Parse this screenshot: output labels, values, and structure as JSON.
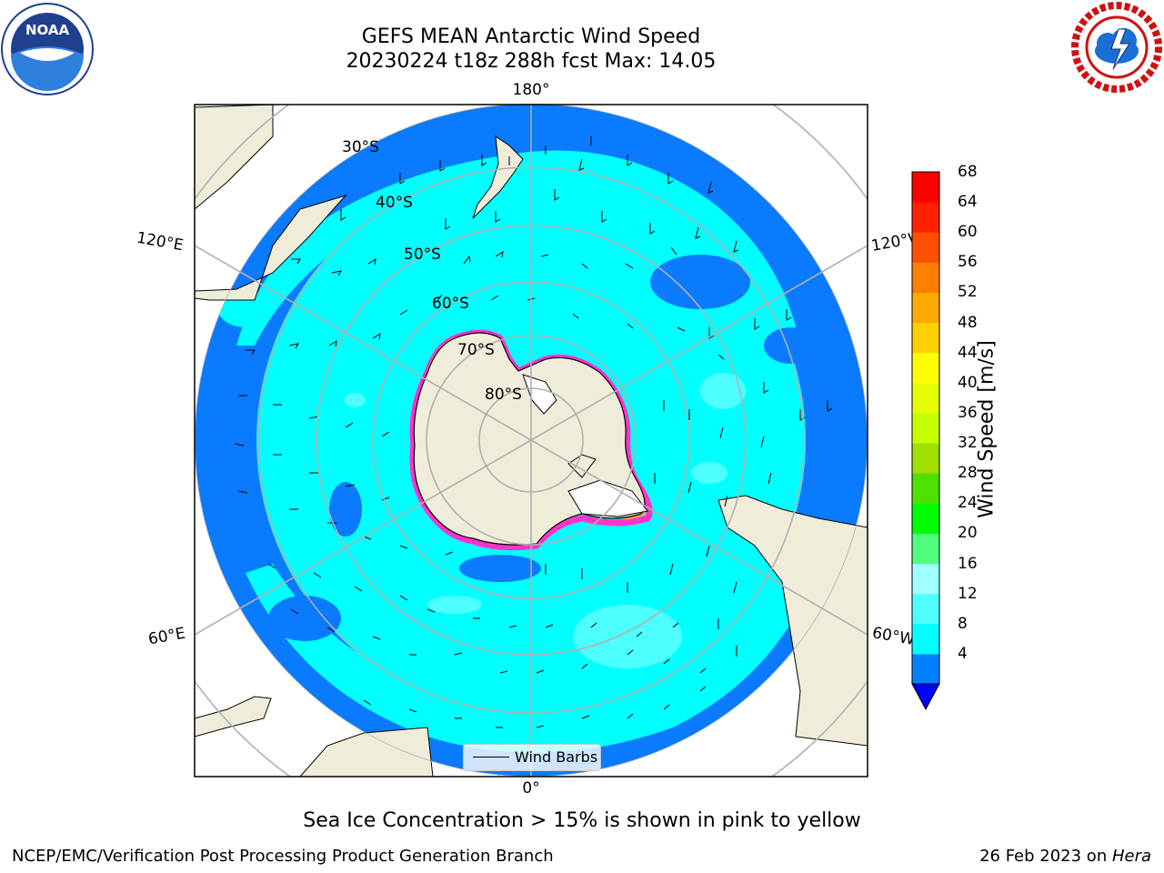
{
  "header": {
    "title_line1": "GEFS MEAN Antarctic Wind Speed",
    "title_line2": "20230224 t18z 288h fcst   Max: 14.05"
  },
  "logos": {
    "left": "noara-logo",
    "right": "nws-logo"
  },
  "map": {
    "projection": "south-polar-stereographic",
    "longitude_labels": {
      "top": "180°",
      "bottom": "0°",
      "upper_left": "120°E",
      "upper_right": "120°W",
      "lower_left": "60°E",
      "lower_right": "60°W"
    },
    "latitude_labels": [
      "30°S",
      "40°S",
      "50°S",
      "60°S",
      "70°S",
      "80°S"
    ],
    "colors": {
      "land": "#efedd9",
      "ice_shelf": "#ffffff",
      "speed_4_8": "#0a7aff",
      "speed_8_12": "#00ffff",
      "speed_12_16": "#4dffff",
      "speed_16_20": "#99ffff",
      "gridline": "#b0b0b0",
      "sea_ice": "#ff33cc"
    }
  },
  "legend": {
    "label": "Wind Barbs"
  },
  "colorbar": {
    "label": "Wind Speed [m/s]",
    "ticks": [
      "68",
      "64",
      "60",
      "56",
      "52",
      "48",
      "44",
      "40",
      "36",
      "32",
      "28",
      "24",
      "20",
      "16",
      "12",
      "8",
      "4"
    ],
    "colors": [
      "#0000ff",
      "#0080ff",
      "#00ffff",
      "#50ffff",
      "#a0ffff",
      "#50ff80",
      "#00ff00",
      "#50e000",
      "#a0e000",
      "#c8ff00",
      "#e6ff00",
      "#ffff00",
      "#ffd000",
      "#ffaa00",
      "#ff8000",
      "#ff5000",
      "#ff2000",
      "#ff0000"
    ]
  },
  "note": "Sea Ice Concentration > 15% is shown in pink to yellow",
  "footer": {
    "left": "NCEP/EMC/Verification Post Processing Product Generation Branch",
    "right_date": "26 Feb 2023 on ",
    "right_host": "Hera"
  }
}
